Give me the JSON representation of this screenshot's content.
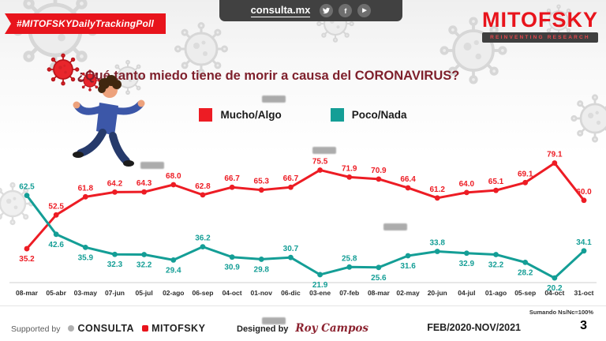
{
  "topbar": {
    "brand": "consulta.mx",
    "icons": [
      "twitter",
      "facebook",
      "youtube"
    ]
  },
  "ribbon": {
    "label": "#MITOFSKYDailyTrackingPoll"
  },
  "logo": {
    "name": "MITOFSKY",
    "tagline": "REINVENTING RESEARCH"
  },
  "title": {
    "prefix": "¿Qué tanto miedo tiene de morir a causa del",
    "highlight": "CORONAVIRUS?"
  },
  "legend": [
    {
      "label": "Mucho/Algo",
      "color": "#ed1c24"
    },
    {
      "label": "Poco/Nada",
      "color": "#149e96"
    }
  ],
  "chart_data": {
    "type": "line",
    "categories": [
      "08-mar",
      "05-abr",
      "03-may",
      "07-jun",
      "05-jul",
      "02-ago",
      "06-sep",
      "04-oct",
      "01-nov",
      "06-dic",
      "03-ene",
      "07-feb",
      "08-mar",
      "02-may",
      "20-jun",
      "04-jul",
      "01-ago",
      "05-sep",
      "04-oct",
      "31-oct"
    ],
    "series": [
      {
        "name": "Mucho/Algo",
        "color": "#ed1c24",
        "values": [
          35.2,
          52.5,
          61.8,
          64.2,
          64.3,
          68.0,
          62.8,
          66.7,
          65.3,
          66.7,
          75.5,
          71.9,
          70.9,
          66.4,
          61.2,
          64.0,
          65.1,
          69.1,
          79.1,
          60.0
        ]
      },
      {
        "name": "Poco/Nada",
        "color": "#149e96",
        "values": [
          62.5,
          42.6,
          35.9,
          32.3,
          32.2,
          29.4,
          36.2,
          30.9,
          29.8,
          30.7,
          21.9,
          25.8,
          25.6,
          31.6,
          33.8,
          32.9,
          32.2,
          28.2,
          20.2,
          34.1
        ]
      }
    ],
    "title": "¿Qué tanto miedo tiene de morir a causa del CORONAVIRUS?",
    "xlabel": "",
    "ylabel": "",
    "ylim": [
      15,
      85
    ],
    "grid": false,
    "legend_position": "top"
  },
  "footnote": "Sumando Ns/Nc=100%",
  "footer": {
    "supported_by_label": "Supported by",
    "brands": [
      "CONSULTA",
      "MITOFSKY"
    ],
    "designed_by_label": "Designed by",
    "designer": "Roy Campos",
    "period": "FEB/2020-NOV/2021",
    "page": "3"
  }
}
